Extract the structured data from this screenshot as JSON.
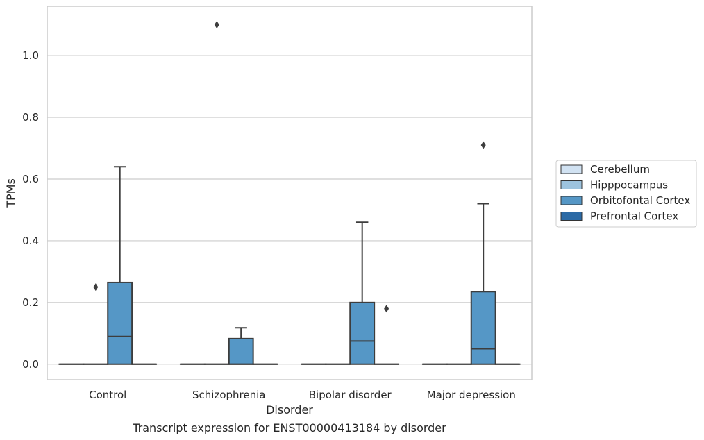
{
  "chart_data": {
    "type": "box",
    "xlabel": "Disorder",
    "ylabel": "TPMs",
    "caption": "Transcript expression for ENST00000413184 by disorder",
    "ylim": [
      -0.05,
      1.16
    ],
    "yticks": [
      "0.0",
      "0.2",
      "0.4",
      "0.6",
      "0.8",
      "1.0"
    ],
    "grid": true,
    "legend_position": "right",
    "categories": [
      "Control",
      "Schizophrenia",
      "Bipolar disorder",
      "Major depression"
    ],
    "series": [
      {
        "name": "Cerebellum",
        "color": "#d1e2f2",
        "boxes": [
          {
            "q1": 0,
            "median": 0,
            "q3": 0,
            "whisker_low": 0,
            "whisker_high": 0,
            "outliers": []
          },
          {
            "q1": 0,
            "median": 0,
            "q3": 0,
            "whisker_low": 0,
            "whisker_high": 0,
            "outliers": []
          },
          {
            "q1": 0,
            "median": 0,
            "q3": 0,
            "whisker_low": 0,
            "whisker_high": 0,
            "outliers": []
          },
          {
            "q1": 0,
            "median": 0,
            "q3": 0,
            "whisker_low": 0,
            "whisker_high": 0,
            "outliers": []
          }
        ]
      },
      {
        "name": "Hipppocampus",
        "color": "#9dc3de",
        "boxes": [
          {
            "q1": 0,
            "median": 0,
            "q3": 0,
            "whisker_low": 0,
            "whisker_high": 0,
            "outliers": [
              0.25
            ]
          },
          {
            "q1": 0,
            "median": 0,
            "q3": 0,
            "whisker_low": 0,
            "whisker_high": 0,
            "outliers": [
              1.1
            ]
          },
          {
            "q1": 0,
            "median": 0,
            "q3": 0,
            "whisker_low": 0,
            "whisker_high": 0,
            "outliers": []
          },
          {
            "q1": 0,
            "median": 0,
            "q3": 0,
            "whisker_low": 0,
            "whisker_high": 0,
            "outliers": []
          }
        ]
      },
      {
        "name": "Orbitofontal Cortex",
        "color": "#5597c6",
        "boxes": [
          {
            "q1": 0,
            "median": 0.09,
            "q3": 0.265,
            "whisker_low": 0,
            "whisker_high": 0.64,
            "outliers": []
          },
          {
            "q1": 0,
            "median": 0,
            "q3": 0.083,
            "whisker_low": 0,
            "whisker_high": 0.118,
            "outliers": []
          },
          {
            "q1": 0,
            "median": 0.075,
            "q3": 0.2,
            "whisker_low": 0,
            "whisker_high": 0.46,
            "outliers": []
          },
          {
            "q1": 0,
            "median": 0.05,
            "q3": 0.235,
            "whisker_low": 0,
            "whisker_high": 0.52,
            "outliers": [
              0.71
            ]
          }
        ]
      },
      {
        "name": "Prefrontal Cortex",
        "color": "#2b6aa5",
        "boxes": [
          {
            "q1": 0,
            "median": 0,
            "q3": 0,
            "whisker_low": 0,
            "whisker_high": 0,
            "outliers": []
          },
          {
            "q1": 0,
            "median": 0,
            "q3": 0,
            "whisker_low": 0,
            "whisker_high": 0,
            "outliers": []
          },
          {
            "q1": 0,
            "median": 0,
            "q3": 0,
            "whisker_low": 0,
            "whisker_high": 0,
            "outliers": [
              0.18
            ]
          },
          {
            "q1": 0,
            "median": 0,
            "q3": 0,
            "whisker_low": 0,
            "whisker_high": 0,
            "outliers": []
          }
        ]
      }
    ]
  }
}
